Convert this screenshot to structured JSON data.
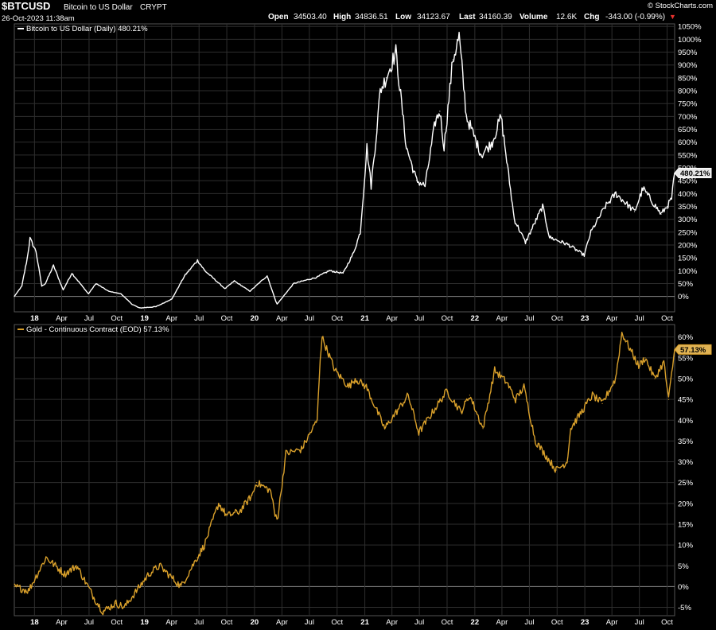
{
  "header": {
    "symbol": "$BTCUSD",
    "name": "Bitcoin to US Dollar",
    "exchange": "CRYPT",
    "date": "26-Oct-2023 11:38am",
    "brand": "© StockCharts.com",
    "open_label": "Open",
    "open": "34503.40",
    "high_label": "High",
    "high": "34836.51",
    "low_label": "Low",
    "low": "34123.67",
    "last_label": "Last",
    "last": "34160.39",
    "volume_label": "Volume",
    "volume": "12.6K",
    "chg_label": "Chg",
    "chg": "-343.00 (-0.99%)",
    "chg_arrow": "▼"
  },
  "colors": {
    "btc": "#ffffff",
    "gold": "#d9a02b",
    "grid": "#2e2e2e",
    "zero": "#8a8a8a",
    "down": "#e8322e"
  },
  "chart_data": [
    {
      "type": "line",
      "legend": "Bitcoin to US Dollar (Daily) 480.21%",
      "last_label": "480.21%",
      "ylim": [
        -60,
        1060
      ],
      "y_ticks": [
        0,
        50,
        100,
        150,
        200,
        250,
        300,
        350,
        400,
        450,
        500,
        550,
        600,
        650,
        700,
        750,
        800,
        850,
        900,
        950,
        1000,
        1050
      ],
      "y_tick_labels": [
        "0%",
        "50%",
        "100%",
        "150%",
        "200%",
        "250%",
        "300%",
        "350%",
        "400%",
        "450%",
        "500%",
        "550%",
        "600%",
        "650%",
        "700%",
        "750%",
        "800%",
        "850%",
        "900%",
        "950%",
        "1000%",
        "1050%"
      ],
      "x_ticks": [
        "18",
        "Apr",
        "Jul",
        "Oct",
        "19",
        "Apr",
        "Jul",
        "Oct",
        "20",
        "Apr",
        "Jul",
        "Oct",
        "21",
        "Apr",
        "Jul",
        "Oct",
        "22",
        "Apr",
        "Jul",
        "Oct",
        "23",
        "Apr",
        "Jul",
        "Oct"
      ],
      "series": [
        {
          "name": "Bitcoin to US Dollar",
          "x": [
            "2017-10-26",
            "2017-11-20",
            "2017-12-08",
            "2017-12-17",
            "2018-01-06",
            "2018-01-25",
            "2018-02-06",
            "2018-03-05",
            "2018-04-06",
            "2018-05-05",
            "2018-06-29",
            "2018-07-24",
            "2018-09-04",
            "2018-10-15",
            "2018-11-20",
            "2018-12-15",
            "2019-02-08",
            "2019-04-02",
            "2019-05-14",
            "2019-06-26",
            "2019-07-20",
            "2019-09-25",
            "2019-10-26",
            "2019-12-17",
            "2020-02-12",
            "2020-03-12",
            "2020-03-16",
            "2020-05-10",
            "2020-07-27",
            "2020-09-05",
            "2020-10-21",
            "2020-11-25",
            "2020-12-17",
            "2021-01-08",
            "2021-01-22",
            "2021-02-10",
            "2021-02-21",
            "2021-03-13",
            "2021-04-14",
            "2021-05-19",
            "2021-06-22",
            "2021-07-20",
            "2021-08-23",
            "2021-09-07",
            "2021-09-21",
            "2021-10-20",
            "2021-11-10",
            "2021-12-04",
            "2022-01-23",
            "2022-02-28",
            "2022-03-29",
            "2022-05-12",
            "2022-06-18",
            "2022-08-14",
            "2022-09-06",
            "2022-11-09",
            "2022-12-30",
            "2023-01-21",
            "2023-03-10",
            "2023-04-14",
            "2023-06-15",
            "2023-07-13",
            "2023-09-11",
            "2023-10-01",
            "2023-10-16",
            "2023-10-26"
          ],
          "values": [
            0,
            40,
            150,
            225,
            175,
            40,
            50,
            120,
            25,
            90,
            10,
            50,
            20,
            10,
            -30,
            -45,
            -40,
            -10,
            80,
            140,
            100,
            30,
            60,
            20,
            80,
            -20,
            -30,
            50,
            75,
            100,
            90,
            170,
            250,
            580,
            430,
            650,
            800,
            850,
            950,
            580,
            450,
            430,
            680,
            720,
            580,
            920,
            1010,
            700,
            550,
            600,
            700,
            300,
            210,
            350,
            230,
            200,
            160,
            250,
            350,
            400,
            330,
            420,
            320,
            350,
            380,
            480
          ]
        }
      ]
    },
    {
      "type": "line",
      "legend": "Gold - Continuous Contract (EOD) 57.13%",
      "last_label": "57.13%",
      "ylim": [
        -7,
        63
      ],
      "y_ticks": [
        -5,
        0,
        5,
        10,
        15,
        20,
        25,
        30,
        35,
        40,
        45,
        50,
        55,
        60
      ],
      "y_tick_labels": [
        "-5%",
        "0%",
        "5%",
        "10%",
        "15%",
        "20%",
        "25%",
        "30%",
        "35%",
        "40%",
        "45%",
        "50%",
        "55%",
        "60%"
      ],
      "x_ticks": [
        "18",
        "Apr",
        "Jul",
        "Oct",
        "19",
        "Apr",
        "Jul",
        "Oct",
        "20",
        "Apr",
        "Jul",
        "Oct",
        "21",
        "Apr",
        "Jul",
        "Oct",
        "22",
        "Apr",
        "Jul",
        "Oct",
        "23",
        "Apr",
        "Jul",
        "Oct"
      ],
      "series": [
        {
          "name": "Gold - Continuous Contract",
          "x": [
            "2017-10-26",
            "2017-12-12",
            "2018-01-25",
            "2018-02-08",
            "2018-04-11",
            "2018-05-21",
            "2018-07-20",
            "2018-08-16",
            "2018-09-28",
            "2018-10-26",
            "2019-01-15",
            "2019-02-20",
            "2019-05-02",
            "2019-06-25",
            "2019-07-19",
            "2019-09-04",
            "2019-10-01",
            "2019-11-12",
            "2019-12-24",
            "2020-01-08",
            "2020-02-24",
            "2020-03-09",
            "2020-03-19",
            "2020-04-14",
            "2020-06-05",
            "2020-07-27",
            "2020-08-06",
            "2020-08-12",
            "2020-09-24",
            "2020-11-09",
            "2020-11-30",
            "2021-01-06",
            "2021-03-08",
            "2021-05-25",
            "2021-06-29",
            "2021-09-30",
            "2021-11-16",
            "2021-12-15",
            "2022-01-28",
            "2022-03-08",
            "2022-04-18",
            "2022-05-16",
            "2022-06-13",
            "2022-07-21",
            "2022-09-28",
            "2022-11-03",
            "2022-11-15",
            "2023-01-26",
            "2023-02-28",
            "2023-04-13",
            "2023-05-04",
            "2023-06-29",
            "2023-07-20",
            "2023-08-21",
            "2023-09-20",
            "2023-10-06",
            "2023-10-26"
          ],
          "values": [
            0,
            -1,
            5,
            7,
            3,
            5,
            -3,
            -6,
            -4,
            -5,
            3,
            5,
            0,
            7,
            10,
            20,
            17,
            18,
            22,
            25,
            23,
            17,
            17,
            32,
            33,
            40,
            55,
            60,
            52,
            48,
            50,
            48,
            38,
            46,
            37,
            47,
            42,
            46,
            38,
            52,
            49,
            45,
            48,
            35,
            28,
            30,
            38,
            46,
            44,
            50,
            61,
            53,
            55,
            50,
            54,
            45,
            57
          ]
        }
      ]
    }
  ]
}
